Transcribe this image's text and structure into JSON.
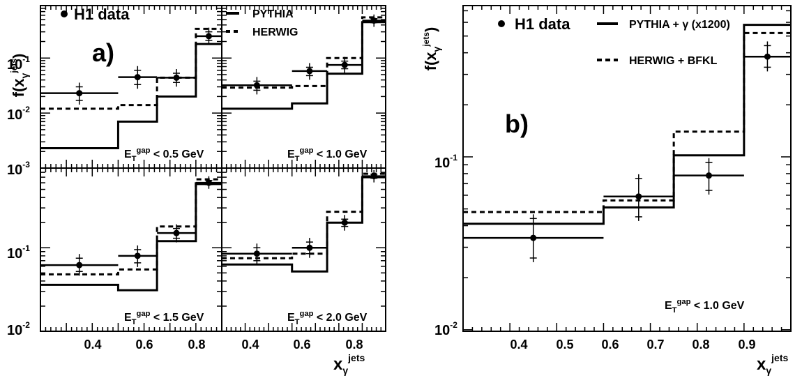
{
  "figure": {
    "y_axis_label": "f(x",
    "y_axis_label_sub": "γ",
    "y_axis_label_sup": "jets",
    "y_axis_label_close": ")",
    "x_axis_label": "x",
    "x_axis_label_sub": "γ",
    "x_axis_label_sup": "jets"
  },
  "colors": {
    "ink": "#000000",
    "background": "#ffffff"
  },
  "panel_a": {
    "tag": "a)",
    "legend": [
      {
        "label": "H1 data",
        "style": "marker"
      },
      {
        "label": "PYTHIA",
        "style": "solid"
      },
      {
        "label": "HERWIG",
        "style": "dashed"
      }
    ],
    "x_ticks": [
      "0.4",
      "0.6",
      "0.8"
    ],
    "y_tick_labels": [
      {
        "mantissa": "10",
        "exponent": "-3"
      },
      {
        "mantissa": "10",
        "exponent": "-2"
      },
      {
        "mantissa": "10",
        "exponent": "-1"
      }
    ]
  },
  "panel_b": {
    "tag": "b)",
    "legend": [
      {
        "label": "H1 data",
        "style": "marker"
      },
      {
        "label": "PYTHIA + γ (x1200)",
        "style": "solid"
      },
      {
        "label": "HERWIG + BFKL",
        "style": "dashed"
      }
    ],
    "x_ticks": [
      "0.4",
      "0.5",
      "0.6",
      "0.7",
      "0.8",
      "0.9"
    ],
    "y_tick_labels": [
      {
        "mantissa": "10",
        "exponent": "-2"
      },
      {
        "mantissa": "10",
        "exponent": "-1"
      }
    ]
  },
  "chart_data": [
    {
      "type": "line",
      "panel": "a) top-left",
      "cut_label": {
        "prefix": "E",
        "sub": "T",
        "sup": "gap",
        "suffix": " < 0.5 GeV"
      },
      "xlim": [
        0.3,
        1.0
      ],
      "ylim": [
        0.001,
        0.9
      ],
      "log_y": true,
      "bin_edges": [
        0.3,
        0.6,
        0.75,
        0.9,
        1.0
      ],
      "series": [
        {
          "name": "H1 data",
          "points": [
            {
              "x": 0.45,
              "y": 0.023,
              "xerr": [
                0.3,
                0.6
              ],
              "yerr": [
                0.017,
                0.03
              ]
            },
            {
              "x": 0.675,
              "y": 0.045,
              "xerr": [
                0.6,
                0.75
              ],
              "yerr": [
                0.033,
                0.06
              ]
            },
            {
              "x": 0.825,
              "y": 0.044,
              "xerr": [
                0.75,
                0.9
              ],
              "yerr": [
                0.036,
                0.053
              ]
            },
            {
              "x": 0.95,
              "y": 0.25,
              "xerr": [
                0.9,
                1.0
              ],
              "yerr": [
                0.21,
                0.3
              ]
            }
          ]
        },
        {
          "name": "PYTHIA",
          "values": [
            0.0023,
            0.007,
            0.02,
            0.18
          ]
        },
        {
          "name": "HERWIG",
          "values": [
            0.012,
            0.014,
            0.044,
            0.34
          ]
        }
      ]
    },
    {
      "type": "line",
      "panel": "a) top-right",
      "cut_label": {
        "prefix": "E",
        "sub": "T",
        "sup": "gap",
        "suffix": " < 1.0 GeV"
      },
      "xlim": [
        0.3,
        1.0
      ],
      "ylim": [
        0.001,
        0.9
      ],
      "log_y": true,
      "bin_edges": [
        0.3,
        0.6,
        0.75,
        0.9,
        1.0
      ],
      "series": [
        {
          "name": "H1 data",
          "points": [
            {
              "x": 0.45,
              "y": 0.032,
              "xerr": [
                0.3,
                0.6
              ],
              "yerr": [
                0.026,
                0.038
              ]
            },
            {
              "x": 0.675,
              "y": 0.058,
              "xerr": [
                0.6,
                0.75
              ],
              "yerr": [
                0.048,
                0.068
              ]
            },
            {
              "x": 0.825,
              "y": 0.075,
              "xerr": [
                0.75,
                0.9
              ],
              "yerr": [
                0.064,
                0.088
              ]
            },
            {
              "x": 0.95,
              "y": 0.48,
              "xerr": [
                0.9,
                1.0
              ],
              "yerr": [
                0.44,
                0.52
              ]
            }
          ]
        },
        {
          "name": "PYTHIA",
          "values": [
            0.012,
            0.015,
            0.052,
            0.45
          ]
        },
        {
          "name": "HERWIG",
          "values": [
            0.029,
            0.031,
            0.1,
            0.55
          ]
        }
      ]
    },
    {
      "type": "line",
      "panel": "a) bottom-left",
      "cut_label": {
        "prefix": "E",
        "sub": "T",
        "sup": "gap",
        "suffix": " < 1.5 GeV"
      },
      "xlim": [
        0.3,
        1.0
      ],
      "ylim": [
        0.01,
        0.9
      ],
      "log_y": true,
      "bin_edges": [
        0.3,
        0.6,
        0.75,
        0.9,
        1.0
      ],
      "series": [
        {
          "name": "H1 data",
          "points": [
            {
              "x": 0.45,
              "y": 0.062,
              "xerr": [
                0.3,
                0.6
              ],
              "yerr": [
                0.052,
                0.075
              ]
            },
            {
              "x": 0.675,
              "y": 0.08,
              "xerr": [
                0.6,
                0.75
              ],
              "yerr": [
                0.066,
                0.095
              ]
            },
            {
              "x": 0.825,
              "y": 0.15,
              "xerr": [
                0.75,
                0.9
              ],
              "yerr": [
                0.13,
                0.17
              ]
            },
            {
              "x": 0.95,
              "y": 0.6,
              "xerr": [
                0.9,
                1.0
              ],
              "yerr": [
                0.57,
                0.64
              ]
            }
          ]
        },
        {
          "name": "PYTHIA",
          "values": [
            0.036,
            0.031,
            0.12,
            0.58
          ]
        },
        {
          "name": "HERWIG",
          "values": [
            0.048,
            0.055,
            0.18,
            0.66
          ]
        }
      ]
    },
    {
      "type": "line",
      "panel": "a) bottom-right",
      "cut_label": {
        "prefix": "E",
        "sub": "T",
        "sup": "gap",
        "suffix": " < 2.0 GeV"
      },
      "xlim": [
        0.3,
        1.0
      ],
      "ylim": [
        0.01,
        0.9
      ],
      "log_y": true,
      "bin_edges": [
        0.3,
        0.6,
        0.75,
        0.9,
        1.0
      ],
      "series": [
        {
          "name": "H1 data",
          "points": [
            {
              "x": 0.45,
              "y": 0.085,
              "xerr": [
                0.3,
                0.6
              ],
              "yerr": [
                0.07,
                0.1
              ]
            },
            {
              "x": 0.675,
              "y": 0.1,
              "xerr": [
                0.6,
                0.75
              ],
              "yerr": [
                0.085,
                0.117
              ]
            },
            {
              "x": 0.825,
              "y": 0.2,
              "xerr": [
                0.75,
                0.9
              ],
              "yerr": [
                0.18,
                0.22
              ]
            },
            {
              "x": 0.95,
              "y": 0.72,
              "xerr": [
                0.9,
                1.0
              ],
              "yerr": [
                0.68,
                0.76
              ]
            }
          ]
        },
        {
          "name": "PYTHIA",
          "values": [
            0.063,
            0.052,
            0.2,
            0.7
          ]
        },
        {
          "name": "HERWIG",
          "values": [
            0.075,
            0.085,
            0.27,
            0.77
          ]
        }
      ]
    },
    {
      "type": "line",
      "panel": "b)",
      "cut_label": {
        "prefix": "E",
        "sub": "T",
        "sup": "gap",
        "suffix": " < 1.0 GeV"
      },
      "xlim": [
        0.3,
        1.0
      ],
      "ylim": [
        0.0098,
        0.75
      ],
      "log_y": true,
      "bin_edges": [
        0.3,
        0.6,
        0.75,
        0.9,
        1.0
      ],
      "series": [
        {
          "name": "H1 data",
          "points": [
            {
              "x": 0.45,
              "y": 0.034,
              "xerr": [
                0.3,
                0.6
              ],
              "yerr": [
                0.026,
                0.044
              ]
            },
            {
              "x": 0.675,
              "y": 0.059,
              "xerr": [
                0.6,
                0.75
              ],
              "yerr": [
                0.045,
                0.075
              ]
            },
            {
              "x": 0.825,
              "y": 0.078,
              "xerr": [
                0.75,
                0.9
              ],
              "yerr": [
                0.064,
                0.093
              ]
            },
            {
              "x": 0.95,
              "y": 0.38,
              "xerr": [
                0.9,
                1.0
              ],
              "yerr": [
                0.33,
                0.44
              ]
            }
          ]
        },
        {
          "name": "PYTHIA + γ (x1200)",
          "values": [
            0.041,
            0.051,
            0.102,
            0.58
          ]
        },
        {
          "name": "HERWIG + BFKL",
          "values": [
            0.048,
            0.056,
            0.14,
            0.52
          ]
        }
      ]
    }
  ]
}
